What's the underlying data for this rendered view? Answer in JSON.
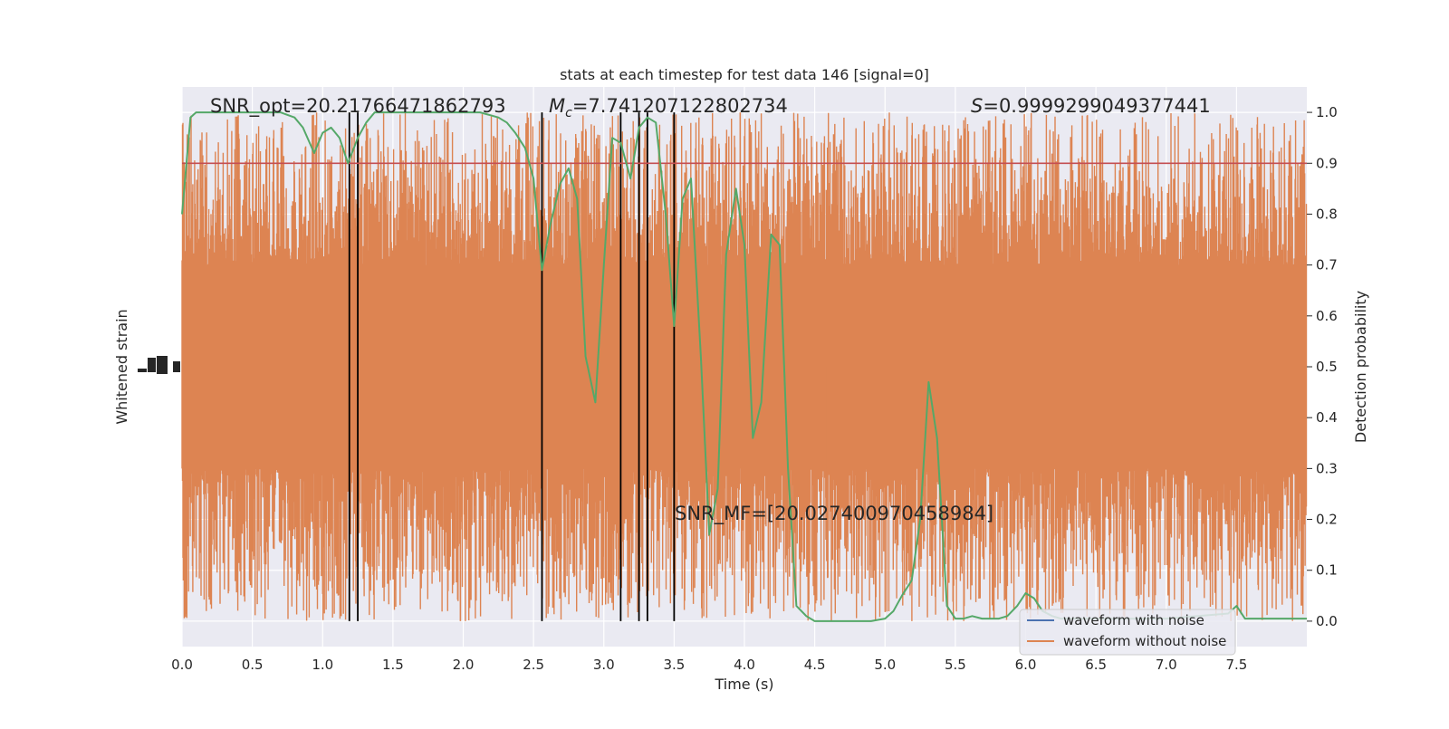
{
  "chart_data": {
    "type": "line",
    "title": "stats at each timestep for test data 146 [signal=0]",
    "xlabel": "Time (s)",
    "ylabel_left": "Whitened strain",
    "ylabel_right": "Detection probability",
    "xlim": [
      0.0,
      8.0
    ],
    "ylim_right": [
      -0.05,
      1.05
    ],
    "x_ticks": [
      "0.0",
      "0.5",
      "1.0",
      "1.5",
      "2.0",
      "2.5",
      "3.0",
      "3.5",
      "4.0",
      "4.5",
      "5.0",
      "5.5",
      "6.0",
      "6.5",
      "7.0",
      "7.5"
    ],
    "y_ticks_right": [
      "0.0",
      "0.1",
      "0.2",
      "0.3",
      "0.4",
      "0.5",
      "0.6",
      "0.7",
      "0.8",
      "0.9",
      "1.0"
    ],
    "grid": true,
    "legend_position": "lower-right",
    "annotations": {
      "snr_opt": "SNR_opt=20.21766471862793",
      "mc_symbol": "M",
      "mc_sub": "c",
      "mc_value": "=7.741207122802734",
      "s_symbol": "S",
      "s_value": "=0.9999299049377441",
      "snr_mf": "SNR_MF=[20.027400970458984]"
    },
    "threshold": 0.9,
    "vertical_lines_x": [
      1.19,
      1.25,
      2.56,
      3.12,
      3.25,
      3.31,
      3.5
    ],
    "series": [
      {
        "name": "waveform with noise",
        "color": "#4c72b0",
        "style": "line"
      },
      {
        "name": "waveform without noise",
        "color": "#dd8452",
        "style": "noise-band",
        "band_core": [
          0.3,
          0.7
        ],
        "band_extent": [
          0.0,
          1.0
        ]
      },
      {
        "color": "#55a868",
        "style": "line",
        "x": [
          0.0,
          0.06,
          0.1,
          0.2,
          0.3,
          0.4,
          0.5,
          0.6,
          0.7,
          0.8,
          0.86,
          0.94,
          1.0,
          1.06,
          1.12,
          1.18,
          1.25,
          1.31,
          1.37,
          1.44,
          1.5,
          1.62,
          1.75,
          1.87,
          2.0,
          2.12,
          2.25,
          2.31,
          2.37,
          2.44,
          2.5,
          2.56,
          2.62,
          2.69,
          2.75,
          2.81,
          2.87,
          2.94,
          3.0,
          3.06,
          3.12,
          3.19,
          3.25,
          3.31,
          3.37,
          3.44,
          3.5,
          3.56,
          3.62,
          3.69,
          3.75,
          3.81,
          3.87,
          3.94,
          4.0,
          4.06,
          4.12,
          4.19,
          4.25,
          4.31,
          4.37,
          4.44,
          4.5,
          4.6,
          4.7,
          4.8,
          4.9,
          5.0,
          5.06,
          5.12,
          5.19,
          5.25,
          5.31,
          5.37,
          5.44,
          5.5,
          5.56,
          5.62,
          5.69,
          5.75,
          5.81,
          5.87,
          5.94,
          6.0,
          6.06,
          6.12,
          6.19,
          6.25,
          6.31,
          6.5,
          7.0,
          7.44,
          7.5,
          7.56,
          7.62,
          8.0
        ],
        "y": [
          0.8,
          0.99,
          1.0,
          1.0,
          1.0,
          1.0,
          1.0,
          1.0,
          1.0,
          0.99,
          0.97,
          0.92,
          0.96,
          0.97,
          0.95,
          0.9,
          0.95,
          0.98,
          1.0,
          1.0,
          1.0,
          1.0,
          1.0,
          1.0,
          1.0,
          1.0,
          0.99,
          0.98,
          0.96,
          0.93,
          0.87,
          0.69,
          0.78,
          0.86,
          0.89,
          0.83,
          0.52,
          0.43,
          0.7,
          0.95,
          0.94,
          0.87,
          0.97,
          0.99,
          0.98,
          0.8,
          0.58,
          0.83,
          0.87,
          0.52,
          0.17,
          0.26,
          0.72,
          0.85,
          0.74,
          0.36,
          0.43,
          0.76,
          0.74,
          0.3,
          0.03,
          0.01,
          0.0,
          0.0,
          0.0,
          0.0,
          0.0,
          0.005,
          0.02,
          0.05,
          0.08,
          0.2,
          0.47,
          0.36,
          0.03,
          0.005,
          0.005,
          0.01,
          0.005,
          0.005,
          0.005,
          0.01,
          0.03,
          0.055,
          0.045,
          0.02,
          0.01,
          0.005,
          0.005,
          0.005,
          0.005,
          0.015,
          0.03,
          0.005,
          0.005,
          0.005
        ]
      },
      {
        "color": "#c44e52",
        "style": "hline"
      }
    ]
  }
}
